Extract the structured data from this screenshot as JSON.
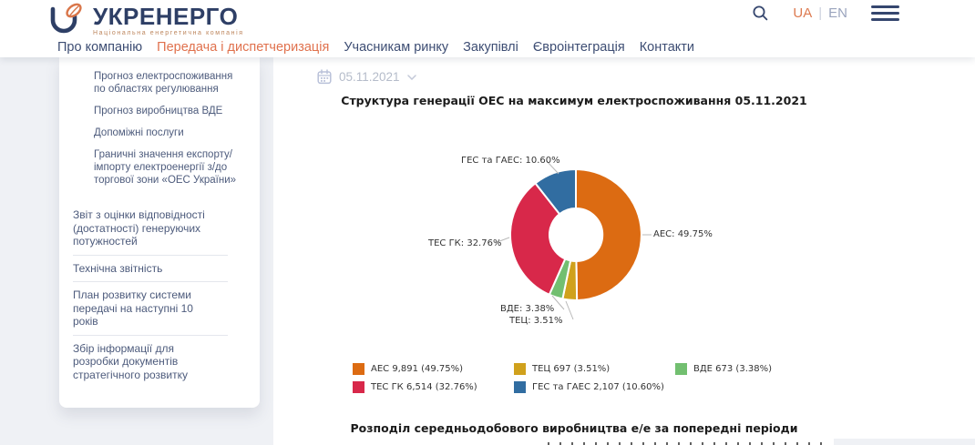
{
  "header": {
    "logo": {
      "title": "УКРЕНЕРГО",
      "subtitle": "Національна енергетична компанія"
    },
    "nav": [
      {
        "label": "Про компанію",
        "active": false
      },
      {
        "label": "Передача і диспетчеризація",
        "active": true
      },
      {
        "label": "Учасникам ринку",
        "active": false
      },
      {
        "label": "Закупівлі",
        "active": false
      },
      {
        "label": "Євроінтеграція",
        "active": false
      },
      {
        "label": "Контакти",
        "active": false
      }
    ],
    "lang": {
      "current": "UA",
      "separator": "|",
      "other": "EN"
    }
  },
  "sidebar": {
    "subitems": [
      "Прогноз електроспоживання по областях регулювання",
      "Прогноз виробництва ВДЕ",
      "Допоміжні послуги",
      "Граничні значення експорту/ імпорту електроенергії з/до торгової зони «ОЕС України»"
    ],
    "items": [
      "Звіт з оцінки відповідності (достатності) генеруючих потужностей",
      "Технічна звітність",
      "План розвитку системи передачі на наступні 10 років",
      "Збір інформації для розробки документів стратегічного розвитку"
    ]
  },
  "content": {
    "date": "05.11.2021",
    "title": "Структура генерації ОЕС на максимум електроспоживання 05.11.2021",
    "next_section_title": "Розподіл середньодобового виробництва е/е за попередні періоди"
  },
  "chart_data": {
    "type": "pie",
    "donut": true,
    "title": "Структура генерації ОЕС на максимум електроспоживання 05.11.2021",
    "legend_position": "bottom",
    "start_angle_deg": 0,
    "direction": "clockwise",
    "series": [
      {
        "name": "АЕС",
        "value": 9891,
        "pct": 49.75,
        "color": "#dc6b12",
        "legend": "АЕС  9,891 (49.75%)",
        "callout": "АЕС: 49.75%"
      },
      {
        "name": "ТЕЦ",
        "value": 697,
        "pct": 3.51,
        "color": "#d0a11c",
        "legend": "ТЕЦ  697 (3.51%)",
        "callout": "ТЕЦ: 3.51%"
      },
      {
        "name": "ВДЕ",
        "value": 673,
        "pct": 3.38,
        "color": "#72bf70",
        "legend": "ВДЕ  673 (3.38%)",
        "callout": "ВДЕ: 3.38%"
      },
      {
        "name": "ТЕС ГК",
        "value": 6514,
        "pct": 32.76,
        "color": "#d8284a",
        "legend": "ТЕС ГК  6,514 (32.76%)",
        "callout": "ТЕС ГК: 32.76%"
      },
      {
        "name": "ГЕС та ГАЕС",
        "value": 2107,
        "pct": 10.6,
        "color": "#316da1",
        "legend": "ГЕС та ГАЕС  2,107 (10.60%)",
        "callout": "ГЕС та ГАЕС: 10.60%"
      }
    ]
  }
}
